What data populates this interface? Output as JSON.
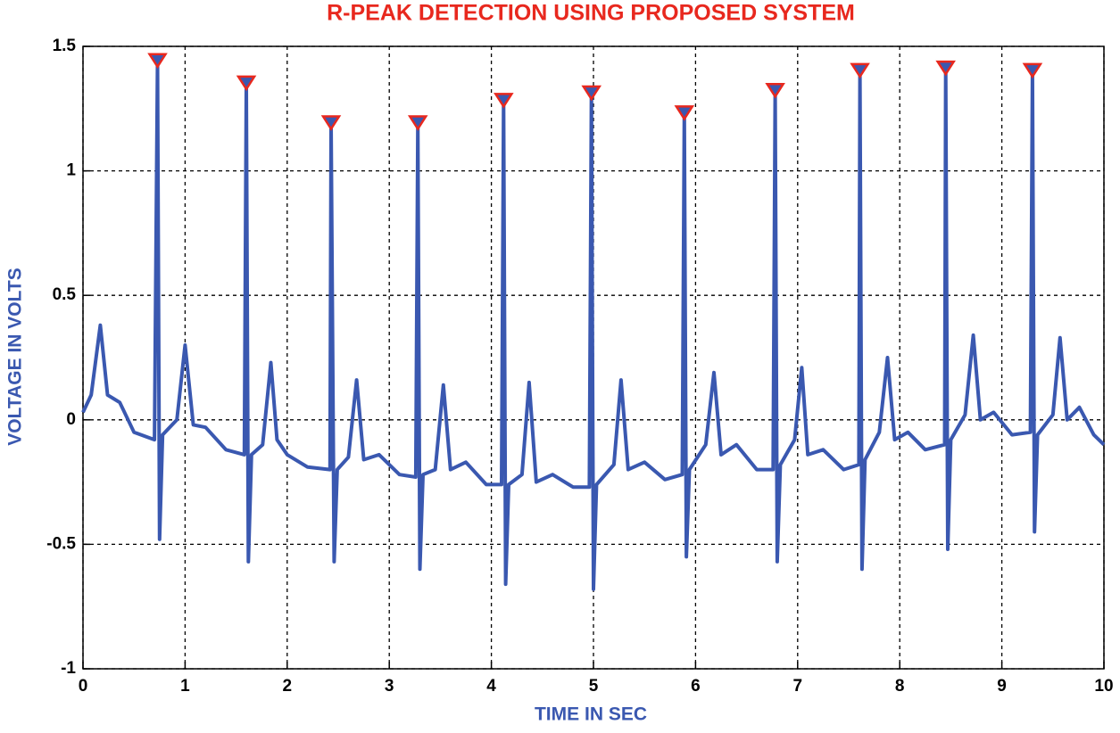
{
  "chart_data": {
    "type": "line",
    "title": "R-PEAK DETECTION USING PROPOSED SYSTEM",
    "x_label": "TIME IN SEC",
    "y_label": "VOLTAGE IN VOLTS",
    "xlim": [
      0,
      10
    ],
    "ylim": [
      -1,
      1.5
    ],
    "xticks": [
      0,
      1,
      2,
      3,
      4,
      5,
      6,
      7,
      8,
      9,
      10
    ],
    "yticks": [
      -1,
      -0.5,
      0,
      0.5,
      1,
      1.5
    ],
    "grid": true,
    "series": [
      {
        "style": "line",
        "color": "#3a58b0",
        "x": [
          0,
          0.08,
          0.17,
          0.24,
          0.36,
          0.5,
          0.7,
          0.73,
          0.75,
          0.78,
          0.92,
          1.0,
          1.08,
          1.2,
          1.4,
          1.58,
          1.6,
          1.62,
          1.65,
          1.76,
          1.84,
          1.9,
          2.0,
          2.2,
          2.42,
          2.43,
          2.46,
          2.49,
          2.6,
          2.68,
          2.75,
          2.9,
          3.1,
          3.26,
          3.28,
          3.3,
          3.33,
          3.45,
          3.53,
          3.6,
          3.75,
          3.95,
          4.1,
          4.12,
          4.14,
          4.17,
          4.3,
          4.37,
          4.44,
          4.6,
          4.8,
          4.96,
          4.98,
          5.0,
          5.03,
          5.2,
          5.27,
          5.34,
          5.5,
          5.7,
          5.87,
          5.89,
          5.91,
          5.94,
          6.1,
          6.18,
          6.25,
          6.4,
          6.6,
          6.76,
          6.78,
          6.8,
          6.83,
          6.97,
          7.04,
          7.1,
          7.25,
          7.45,
          7.6,
          7.61,
          7.63,
          7.66,
          7.8,
          7.88,
          7.95,
          8.08,
          8.25,
          8.44,
          8.45,
          8.47,
          8.5,
          8.64,
          8.72,
          8.79,
          8.92,
          9.1,
          9.28,
          9.3,
          9.32,
          9.35,
          9.5,
          9.57,
          9.64,
          9.76,
          9.9,
          10
        ],
        "values": [
          0.03,
          0.1,
          0.38,
          0.1,
          0.07,
          -0.05,
          -0.08,
          1.44,
          -0.48,
          -0.06,
          0.0,
          0.3,
          -0.02,
          -0.03,
          -0.12,
          -0.14,
          1.35,
          -0.57,
          -0.14,
          -0.1,
          0.23,
          -0.08,
          -0.14,
          -0.19,
          -0.2,
          1.19,
          -0.57,
          -0.2,
          -0.15,
          0.16,
          -0.16,
          -0.14,
          -0.22,
          -0.23,
          1.19,
          -0.6,
          -0.22,
          -0.2,
          0.14,
          -0.2,
          -0.17,
          -0.26,
          -0.26,
          1.28,
          -0.66,
          -0.26,
          -0.22,
          0.15,
          -0.25,
          -0.22,
          -0.27,
          -0.27,
          1.31,
          -0.68,
          -0.26,
          -0.18,
          0.16,
          -0.2,
          -0.17,
          -0.24,
          -0.22,
          1.23,
          -0.55,
          -0.2,
          -0.1,
          0.19,
          -0.14,
          -0.1,
          -0.2,
          -0.2,
          1.32,
          -0.57,
          -0.18,
          -0.08,
          0.21,
          -0.14,
          -0.12,
          -0.2,
          -0.18,
          1.4,
          -0.6,
          -0.16,
          -0.05,
          0.25,
          -0.08,
          -0.05,
          -0.12,
          -0.1,
          1.41,
          -0.52,
          -0.08,
          0.02,
          0.34,
          0.0,
          0.03,
          -0.06,
          -0.05,
          1.4,
          -0.45,
          -0.06,
          0.02,
          0.33,
          0.0,
          0.05,
          -0.06,
          -0.1
        ]
      },
      {
        "style": "markers",
        "color": "#e8281e",
        "x": [
          0.73,
          1.6,
          2.43,
          3.28,
          4.12,
          4.98,
          5.89,
          6.78,
          7.61,
          8.45,
          9.3
        ],
        "values": [
          1.44,
          1.35,
          1.19,
          1.19,
          1.28,
          1.31,
          1.23,
          1.32,
          1.4,
          1.41,
          1.4
        ]
      }
    ]
  }
}
